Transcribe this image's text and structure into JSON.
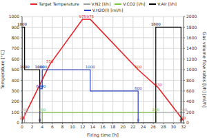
{
  "chart_data": {
    "type": "line",
    "x_label": "Firing time [h]",
    "y_label": "Temperature [°C]",
    "y2_label": "Gas volume flow rates [l/h] [ml/h]",
    "xlim": [
      0,
      32
    ],
    "xticks": [
      0,
      2,
      4,
      6,
      8,
      10,
      12,
      14,
      16,
      18,
      20,
      22,
      24,
      26,
      28,
      30,
      32
    ],
    "ylim": [
      0,
      1000
    ],
    "yticks": [
      0,
      100,
      200,
      300,
      400,
      500,
      600,
      700,
      800,
      900,
      1000
    ],
    "y2lim": [
      0,
      2000
    ],
    "y2ticks": [
      0,
      200,
      400,
      600,
      800,
      1000,
      1200,
      1400,
      1600,
      1800,
      2000
    ],
    "grid": true,
    "legend": "top",
    "data_labels": true,
    "series": [
      {
        "name": "Target Temperature",
        "color": "#e3262a",
        "axis": "y",
        "x": [
          0,
          5.5,
          12,
          13.5,
          23,
          27,
          32
        ],
        "values": [
          20,
          550,
          975,
          975,
          500,
          330,
          20
        ],
        "value_labels": [
          "20",
          "550",
          "975",
          "975",
          "500",
          "330",
          "20"
        ]
      },
      {
        "name": "V.N2 [l/h]",
        "color": "#a0a0a0",
        "axis": "y2",
        "x": [
          0.5,
          0.5,
          32
        ],
        "values": [
          0,
          200,
          200
        ],
        "value_labels": [
          null,
          "200",
          "200"
        ]
      },
      {
        "name": "V.CO2 [l/h]",
        "color": "#7dc242",
        "axis": "y2",
        "x": [
          4,
          4,
          26.5,
          26.5
        ],
        "values": [
          0,
          200,
          200,
          0
        ],
        "value_labels": [
          null,
          "200",
          "200",
          null
        ]
      },
      {
        "name": "V.Air [l/h]",
        "color": "#000000",
        "axis": "y2",
        "x": [
          0,
          0,
          0.5,
          0.5,
          3.5,
          3.5,
          26.5,
          26.5,
          31.5,
          31.5
        ],
        "values": [
          0,
          1800,
          1800,
          1000,
          1000,
          0,
          0,
          1800,
          1800,
          0
        ],
        "value_labels": [
          null,
          "1800",
          null,
          "1000",
          "1000",
          "0",
          null,
          "1800",
          null,
          "0"
        ]
      },
      {
        "name": "V.H2O(l) [ml/h]",
        "color": "#2a3fbf",
        "axis": "y2",
        "x": [
          3.5,
          3.5,
          4,
          4,
          13.5,
          13.5,
          23,
          23
        ],
        "values": [
          0,
          640,
          640,
          1000,
          1000,
          600,
          600,
          0
        ],
        "value_labels": [
          null,
          "640",
          "640",
          "1000",
          "1000",
          null,
          "600",
          "0"
        ]
      }
    ]
  }
}
